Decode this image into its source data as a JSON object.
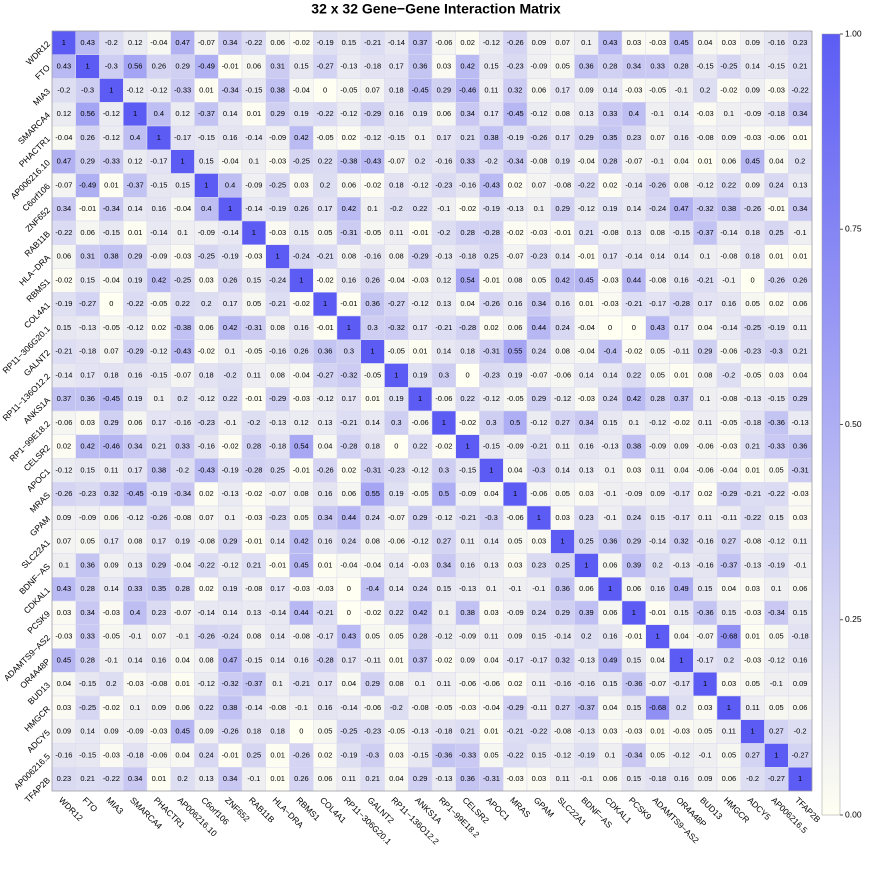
{
  "chart_data": {
    "type": "heatmap",
    "title": "32 x 32 Gene−Gene Interaction Matrix",
    "rows": [
      "WDR12",
      "FTO",
      "MIA3",
      "SMARCA4",
      "PHACTR1",
      "AP006216.10",
      "C6orf106",
      "ZNF652",
      "RAB11B",
      "HLA−DRA",
      "RBMS1",
      "COL4A1",
      "RP11−306G20.1",
      "GALNT2",
      "RP11−136O12.2",
      "ANKS1A",
      "RP1−99E18.2",
      "CELSR2",
      "APOC1",
      "MRAS",
      "GPAM",
      "SLC22A1",
      "BDNF−AS",
      "CDKAL1",
      "PCSK9",
      "ADAMTS9−AS2",
      "OR4A48P",
      "BUD13",
      "HMGCR",
      "ADCY5",
      "AP006216.5",
      "TFAP2B"
    ],
    "columns": [
      "WDR12",
      "FTO",
      "MIA3",
      "SMARCA4",
      "PHACTR1",
      "AP006216.10",
      "C6orf106",
      "ZNF652",
      "RAB11B",
      "HLA−DRA",
      "RBMS1",
      "COL4A1",
      "RP11−306G20.1",
      "GALNT2",
      "RP11−136O12.2",
      "ANKS1A",
      "RP1−99E18.2",
      "CELSR2",
      "APOC1",
      "MRAS",
      "GPAM",
      "SLC22A1",
      "BDNF−AS",
      "CDKAL1",
      "PCSK9",
      "ADAMTS9−AS2",
      "OR4A48P",
      "BUD13",
      "HMGCR",
      "ADCY5",
      "AP006216.5",
      "TFAP2B"
    ],
    "values": [
      [
        1,
        0.43,
        -0.2,
        0.12,
        -0.04,
        0.47,
        -0.07,
        0.34,
        -0.22,
        0.06,
        -0.02,
        -0.19,
        0.15,
        -0.21,
        -0.14,
        0.37,
        -0.06,
        0.02,
        -0.12,
        -0.26,
        0.09,
        0.07,
        0.1,
        0.43,
        0.03,
        -0.03,
        0.45,
        0.04,
        0.03,
        0.09,
        -0.16,
        0.23
      ],
      [
        0.43,
        1,
        -0.3,
        0.56,
        0.26,
        0.29,
        -0.49,
        -0.01,
        0.06,
        0.31,
        0.15,
        -0.27,
        -0.13,
        -0.18,
        0.17,
        0.36,
        0.03,
        0.42,
        0.15,
        -0.23,
        -0.09,
        0.05,
        0.36,
        0.28,
        0.34,
        0.33,
        0.28,
        -0.15,
        -0.25,
        0.14,
        -0.15,
        0.21
      ],
      [
        -0.2,
        -0.3,
        1,
        -0.12,
        -0.12,
        -0.33,
        0.01,
        -0.34,
        -0.15,
        0.38,
        -0.04,
        0,
        -0.05,
        0.07,
        0.18,
        -0.45,
        0.29,
        -0.46,
        0.11,
        0.32,
        0.06,
        0.17,
        0.09,
        0.14,
        -0.03,
        -0.05,
        -0.1,
        0.2,
        -0.02,
        0.09,
        -0.03,
        -0.22
      ],
      [
        0.12,
        0.56,
        -0.12,
        1,
        0.4,
        0.12,
        -0.37,
        0.14,
        0.01,
        0.29,
        0.19,
        -0.22,
        -0.12,
        -0.29,
        0.16,
        0.19,
        0.06,
        0.34,
        0.17,
        -0.45,
        -0.12,
        0.08,
        0.13,
        0.33,
        0.4,
        -0.1,
        0.14,
        -0.03,
        0.1,
        -0.09,
        -0.18,
        0.34
      ],
      [
        -0.04,
        0.26,
        -0.12,
        0.4,
        1,
        -0.17,
        -0.15,
        0.16,
        -0.14,
        -0.09,
        0.42,
        -0.05,
        0.02,
        -0.12,
        -0.15,
        0.1,
        0.17,
        0.21,
        0.38,
        -0.19,
        -0.26,
        0.17,
        0.29,
        0.35,
        0.23,
        0.07,
        0.16,
        -0.08,
        0.09,
        -0.03,
        -0.06,
        0.01
      ],
      [
        0.47,
        0.29,
        -0.33,
        0.12,
        -0.17,
        1,
        0.15,
        -0.04,
        0.1,
        -0.03,
        -0.25,
        0.22,
        -0.38,
        -0.43,
        -0.07,
        0.2,
        -0.16,
        0.33,
        -0.2,
        -0.34,
        -0.08,
        0.19,
        -0.04,
        0.28,
        -0.07,
        -0.1,
        0.04,
        0.01,
        0.06,
        0.45,
        0.04,
        0.2
      ],
      [
        -0.07,
        -0.49,
        0.01,
        -0.37,
        -0.15,
        0.15,
        1,
        0.4,
        -0.09,
        -0.25,
        0.03,
        0.2,
        0.06,
        -0.02,
        0.18,
        -0.12,
        -0.23,
        -0.16,
        -0.43,
        0.02,
        0.07,
        -0.08,
        -0.22,
        0.02,
        -0.14,
        -0.26,
        0.08,
        -0.12,
        0.22,
        0.09,
        0.24,
        0.13
      ],
      [
        0.34,
        -0.01,
        -0.34,
        0.14,
        0.16,
        -0.04,
        0.4,
        1,
        -0.14,
        -0.19,
        0.26,
        0.17,
        0.42,
        0.1,
        -0.2,
        0.22,
        -0.1,
        -0.02,
        -0.19,
        -0.13,
        0.1,
        0.29,
        -0.12,
        0.19,
        0.14,
        -0.24,
        0.47,
        -0.32,
        0.38,
        -0.26,
        -0.01,
        0.34
      ],
      [
        -0.22,
        0.06,
        -0.15,
        0.01,
        -0.14,
        0.1,
        -0.09,
        -0.14,
        1,
        -0.03,
        0.15,
        0.05,
        -0.31,
        -0.05,
        0.11,
        -0.01,
        -0.2,
        0.28,
        -0.28,
        -0.02,
        -0.03,
        -0.01,
        0.21,
        -0.08,
        0.13,
        0.08,
        -0.15,
        -0.37,
        -0.14,
        0.18,
        0.25,
        -0.1
      ],
      [
        0.06,
        0.31,
        0.38,
        0.29,
        -0.09,
        -0.03,
        -0.25,
        -0.19,
        -0.03,
        1,
        -0.24,
        -0.21,
        0.08,
        -0.16,
        0.08,
        -0.29,
        -0.13,
        -0.18,
        0.25,
        -0.07,
        -0.23,
        0.14,
        -0.01,
        0.17,
        -0.14,
        0.14,
        0.14,
        0.1,
        -0.08,
        0.18,
        0.01,
        0.01
      ],
      [
        -0.02,
        0.15,
        -0.04,
        0.19,
        0.42,
        -0.25,
        0.03,
        0.26,
        0.15,
        -0.24,
        1,
        -0.02,
        0.16,
        0.26,
        -0.04,
        -0.03,
        0.12,
        0.54,
        -0.01,
        0.08,
        0.05,
        0.42,
        0.45,
        -0.03,
        0.44,
        -0.08,
        0.16,
        -0.21,
        -0.1,
        0,
        -0.26,
        0.26
      ],
      [
        -0.19,
        -0.27,
        0,
        -0.22,
        -0.05,
        0.22,
        0.2,
        0.17,
        0.05,
        -0.21,
        -0.02,
        1,
        -0.01,
        0.36,
        -0.27,
        -0.12,
        0.13,
        0.04,
        -0.26,
        0.16,
        0.34,
        0.16,
        0.01,
        -0.03,
        -0.21,
        -0.17,
        -0.28,
        0.17,
        0.16,
        0.05,
        0.02,
        0.06
      ],
      [
        0.15,
        -0.13,
        -0.05,
        -0.12,
        0.02,
        -0.38,
        0.06,
        0.42,
        -0.31,
        0.08,
        0.16,
        -0.01,
        1,
        0.3,
        -0.32,
        0.17,
        -0.21,
        -0.28,
        0.02,
        0.06,
        0.44,
        0.24,
        -0.04,
        0,
        0,
        0.43,
        0.17,
        0.04,
        -0.14,
        -0.25,
        -0.19,
        0.11
      ],
      [
        -0.21,
        -0.18,
        0.07,
        -0.29,
        -0.12,
        -0.43,
        -0.02,
        0.1,
        -0.05,
        -0.16,
        0.26,
        0.36,
        0.3,
        1,
        -0.05,
        0.01,
        0.14,
        0.18,
        -0.31,
        0.55,
        0.24,
        0.08,
        -0.04,
        -0.4,
        -0.02,
        0.05,
        -0.11,
        0.29,
        -0.06,
        -0.23,
        -0.3,
        0.21
      ],
      [
        -0.14,
        0.17,
        0.18,
        0.16,
        -0.15,
        -0.07,
        0.18,
        -0.2,
        0.11,
        0.08,
        -0.04,
        -0.27,
        -0.32,
        -0.05,
        1,
        0.19,
        0.3,
        0,
        -0.23,
        0.19,
        -0.07,
        -0.06,
        0.14,
        0.14,
        0.22,
        0.05,
        0.01,
        0.08,
        -0.2,
        -0.05,
        0.03,
        0.04
      ],
      [
        0.37,
        0.36,
        -0.45,
        0.19,
        0.1,
        0.2,
        -0.12,
        0.22,
        -0.01,
        -0.29,
        -0.03,
        -0.12,
        0.17,
        0.01,
        0.19,
        1,
        -0.06,
        0.22,
        -0.12,
        -0.05,
        0.29,
        -0.12,
        -0.03,
        0.24,
        0.42,
        0.28,
        0.37,
        0.1,
        -0.08,
        -0.13,
        -0.15,
        0.29
      ],
      [
        -0.06,
        0.03,
        0.29,
        0.06,
        0.17,
        -0.16,
        -0.23,
        -0.1,
        -0.2,
        -0.13,
        0.12,
        0.13,
        -0.21,
        0.14,
        0.3,
        -0.06,
        1,
        -0.02,
        0.3,
        0.5,
        -0.12,
        0.27,
        0.34,
        0.15,
        0.1,
        -0.12,
        -0.02,
        0.11,
        -0.05,
        -0.18,
        -0.36,
        -0.13
      ],
      [
        0.02,
        0.42,
        -0.46,
        0.34,
        0.21,
        0.33,
        -0.16,
        -0.02,
        0.28,
        -0.18,
        0.54,
        0.04,
        -0.28,
        0.18,
        0,
        0.22,
        -0.02,
        1,
        -0.15,
        -0.09,
        -0.21,
        0.11,
        0.16,
        -0.13,
        0.38,
        -0.09,
        0.09,
        -0.06,
        -0.03,
        0.21,
        -0.33,
        0.36
      ],
      [
        -0.12,
        0.15,
        0.11,
        0.17,
        0.38,
        -0.2,
        -0.43,
        -0.19,
        -0.28,
        0.25,
        -0.01,
        -0.26,
        0.02,
        -0.31,
        -0.23,
        -0.12,
        0.3,
        -0.15,
        1,
        0.04,
        -0.3,
        0.14,
        0.13,
        0.1,
        0.03,
        0.11,
        0.04,
        -0.06,
        -0.04,
        0.01,
        0.05,
        -0.31
      ],
      [
        -0.26,
        -0.23,
        0.32,
        -0.45,
        -0.19,
        -0.34,
        0.02,
        -0.13,
        -0.02,
        -0.07,
        0.08,
        0.16,
        0.06,
        0.55,
        0.19,
        -0.05,
        0.5,
        -0.09,
        0.04,
        1,
        -0.06,
        0.05,
        0.03,
        -0.1,
        -0.09,
        0.09,
        -0.17,
        0.02,
        -0.29,
        -0.21,
        -0.22,
        -0.03
      ],
      [
        0.09,
        -0.09,
        0.06,
        -0.12,
        -0.26,
        -0.08,
        0.07,
        0.1,
        -0.03,
        -0.23,
        0.05,
        0.34,
        0.44,
        0.24,
        -0.07,
        0.29,
        -0.12,
        -0.21,
        -0.3,
        -0.06,
        1,
        0.03,
        0.23,
        -0.1,
        0.24,
        0.15,
        -0.17,
        0.11,
        -0.11,
        -0.22,
        0.15,
        0.03
      ],
      [
        0.07,
        0.05,
        0.17,
        0.08,
        0.17,
        0.19,
        -0.08,
        0.29,
        -0.01,
        0.14,
        0.42,
        0.16,
        0.24,
        0.08,
        -0.06,
        -0.12,
        0.27,
        0.11,
        0.14,
        0.05,
        0.03,
        1,
        0.25,
        0.36,
        0.29,
        -0.14,
        0.32,
        -0.16,
        0.27,
        -0.08,
        -0.12,
        0.11
      ],
      [
        0.1,
        0.36,
        0.09,
        0.13,
        0.29,
        -0.04,
        -0.22,
        -0.12,
        0.21,
        -0.01,
        0.45,
        0.01,
        -0.04,
        -0.04,
        0.14,
        -0.03,
        0.34,
        0.16,
        0.13,
        0.03,
        0.23,
        0.25,
        1,
        0.06,
        0.39,
        0.2,
        -0.13,
        -0.16,
        -0.37,
        -0.13,
        -0.19,
        -0.1
      ],
      [
        0.43,
        0.28,
        0.14,
        0.33,
        0.35,
        0.28,
        0.02,
        0.19,
        -0.08,
        0.17,
        -0.03,
        -0.03,
        0,
        -0.4,
        0.14,
        0.24,
        0.15,
        -0.13,
        0.1,
        -0.1,
        -0.1,
        0.36,
        0.06,
        1,
        0.06,
        0.16,
        0.49,
        0.15,
        0.04,
        0.03,
        0.1,
        0.06
      ],
      [
        0.03,
        0.34,
        -0.03,
        0.4,
        0.23,
        -0.07,
        -0.14,
        0.14,
        0.13,
        -0.14,
        0.44,
        -0.21,
        0,
        -0.02,
        0.22,
        0.42,
        0.1,
        0.38,
        0.03,
        -0.09,
        0.24,
        0.29,
        0.39,
        0.06,
        1,
        -0.01,
        0.15,
        -0.36,
        0.15,
        -0.03,
        -0.34,
        0.15
      ],
      [
        -0.03,
        0.33,
        -0.05,
        -0.1,
        0.07,
        -0.1,
        -0.26,
        -0.24,
        0.08,
        0.14,
        -0.08,
        -0.17,
        0.43,
        0.05,
        0.05,
        0.28,
        -0.12,
        -0.09,
        0.11,
        0.09,
        0.15,
        -0.14,
        0.2,
        0.16,
        -0.01,
        1,
        0.04,
        -0.07,
        -0.68,
        0.01,
        0.05,
        -0.18
      ],
      [
        0.45,
        0.28,
        -0.1,
        0.14,
        0.16,
        0.04,
        0.08,
        0.47,
        -0.15,
        0.14,
        0.16,
        -0.28,
        0.17,
        -0.11,
        0.01,
        0.37,
        -0.02,
        0.09,
        0.04,
        -0.17,
        -0.17,
        0.32,
        -0.13,
        0.49,
        0.15,
        0.04,
        1,
        -0.17,
        0.2,
        -0.03,
        -0.12,
        0.16
      ],
      [
        0.04,
        -0.15,
        0.2,
        -0.03,
        -0.08,
        0.01,
        -0.12,
        -0.32,
        -0.37,
        0.1,
        -0.21,
        0.17,
        0.04,
        0.29,
        0.08,
        0.1,
        0.11,
        -0.06,
        -0.06,
        0.02,
        0.11,
        -0.16,
        -0.16,
        0.15,
        -0.36,
        -0.07,
        -0.17,
        1,
        0.03,
        0.05,
        -0.1,
        0.09
      ],
      [
        0.03,
        -0.25,
        -0.02,
        0.1,
        0.09,
        0.06,
        0.22,
        0.38,
        -0.14,
        -0.08,
        -0.1,
        0.16,
        -0.14,
        -0.06,
        -0.2,
        -0.08,
        -0.05,
        -0.03,
        -0.04,
        -0.29,
        -0.11,
        0.27,
        -0.37,
        0.04,
        0.15,
        -0.68,
        0.2,
        0.03,
        1,
        0.11,
        0.05,
        0.06
      ],
      [
        0.09,
        0.14,
        0.09,
        -0.09,
        -0.03,
        0.45,
        0.09,
        -0.26,
        0.18,
        0.18,
        0,
        0.05,
        -0.25,
        -0.23,
        -0.05,
        -0.13,
        -0.18,
        0.21,
        0.01,
        -0.21,
        -0.22,
        -0.08,
        -0.13,
        0.03,
        -0.03,
        0.01,
        -0.03,
        0.05,
        0.11,
        1,
        0.27,
        -0.2
      ],
      [
        -0.16,
        -0.15,
        -0.03,
        -0.18,
        -0.06,
        0.04,
        0.24,
        -0.01,
        0.25,
        0.01,
        -0.26,
        0.02,
        -0.19,
        -0.3,
        0.03,
        -0.15,
        -0.36,
        -0.33,
        0.05,
        -0.22,
        0.15,
        -0.12,
        -0.19,
        0.1,
        -0.34,
        0.05,
        -0.12,
        -0.1,
        0.05,
        0.27,
        1,
        -0.27
      ],
      [
        0.23,
        0.21,
        -0.22,
        0.34,
        0.01,
        0.2,
        0.13,
        0.34,
        -0.1,
        0.01,
        0.26,
        0.06,
        0.11,
        0.21,
        0.04,
        0.29,
        -0.13,
        0.36,
        -0.31,
        -0.03,
        0.03,
        0.11,
        -0.1,
        0.06,
        0.15,
        -0.18,
        0.16,
        0.09,
        0.06,
        -0.2,
        -0.27,
        1
      ]
    ],
    "colors": [
      "#fffff2",
      "#5c5cf5"
    ],
    "zlim": [
      0,
      1
    ],
    "zticks": [
      {
        "value": 0,
        "label": "0.00"
      },
      {
        "value": 0.25,
        "label": "0.25"
      },
      {
        "value": 0.5,
        "label": "0.50"
      },
      {
        "value": 0.75,
        "label": "0.75"
      },
      {
        "value": 1,
        "label": "1.00"
      }
    ]
  }
}
